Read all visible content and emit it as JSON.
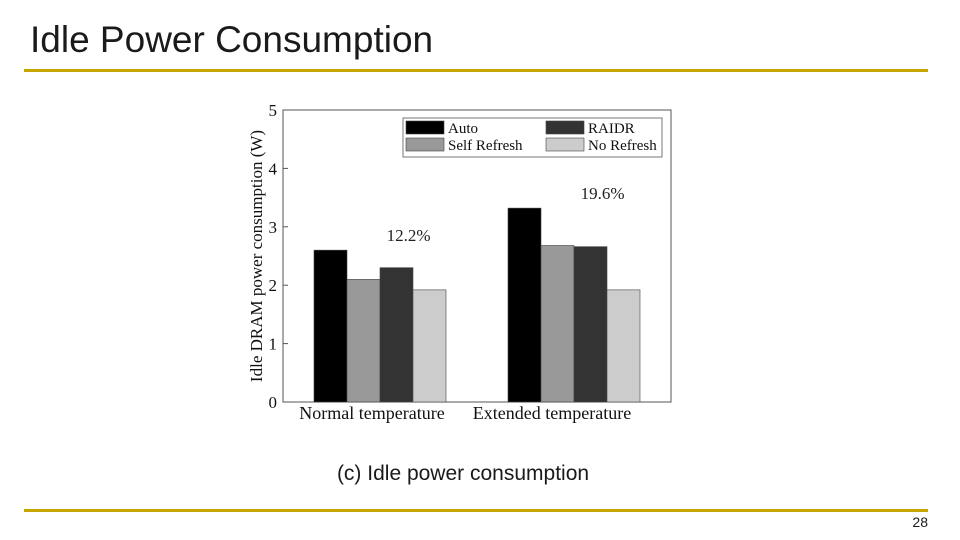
{
  "slide": {
    "title": "Idle Power Consumption",
    "caption": "(c) Idle power consumption",
    "page_number": "28",
    "accent_color": "#c8a400"
  },
  "chart_data": {
    "type": "bar",
    "ylabel": "Idle DRAM power consumption (W)",
    "xlabel": "",
    "ylim": [
      0,
      5
    ],
    "yticks": [
      0,
      1,
      2,
      3,
      4,
      5
    ],
    "categories": [
      "Normal temperature",
      "Extended temperature"
    ],
    "series": [
      {
        "name": "Auto",
        "color": "#000000",
        "values": [
          2.6,
          3.32
        ]
      },
      {
        "name": "Self Refresh",
        "color": "#999999",
        "values": [
          2.1,
          2.68
        ]
      },
      {
        "name": "RAIDR",
        "color": "#333333",
        "values": [
          2.3,
          2.66
        ]
      },
      {
        "name": "No Refresh",
        "color": "#cccccc",
        "values": [
          1.92,
          1.92
        ]
      }
    ],
    "annotations": [
      {
        "text": "12.2%",
        "category": 0
      },
      {
        "text": "19.6%",
        "category": 1
      }
    ],
    "legend": {
      "position": "top-right",
      "order": [
        "Auto",
        "RAIDR",
        "Self Refresh",
        "No Refresh"
      ]
    }
  }
}
